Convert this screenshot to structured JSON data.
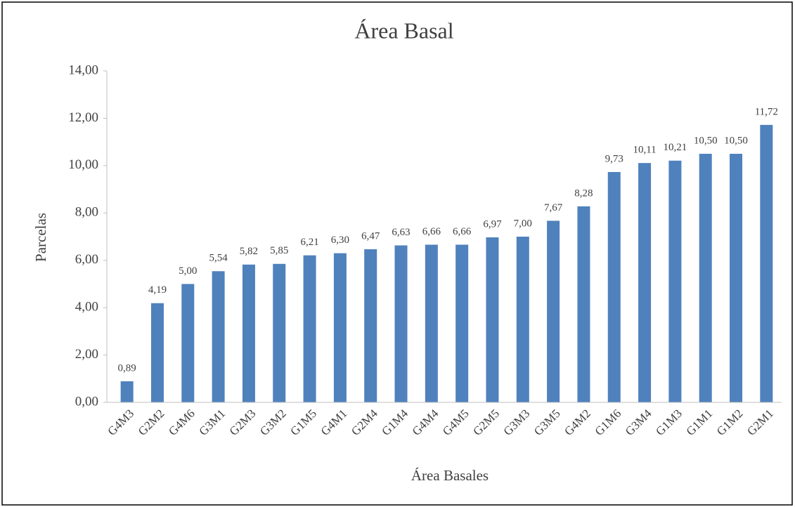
{
  "chart_data": {
    "type": "bar",
    "title": "Área Basal",
    "x_label": "Área Basales",
    "y_label": "Parcelas",
    "categories": [
      "G4M3",
      "G2M2",
      "G4M6",
      "G3M1",
      "G2M3",
      "G3M2",
      "G1M5",
      "G4M1",
      "G2M4",
      "G1M4",
      "G4M4",
      "G4M5",
      "G2M5",
      "G3M3",
      "G3M5",
      "G4M2",
      "G1M6",
      "G3M4",
      "G1M3",
      "G1M1",
      "G1M2",
      "G2M1"
    ],
    "values": [
      0.89,
      4.19,
      5.0,
      5.54,
      5.82,
      5.85,
      6.21,
      6.3,
      6.47,
      6.63,
      6.66,
      6.66,
      6.97,
      7.0,
      7.67,
      8.28,
      9.73,
      10.11,
      10.21,
      10.5,
      10.5,
      11.72
    ],
    "value_labels": [
      "0,89",
      "4,19",
      "5,00",
      "5,54",
      "5,82",
      "5,85",
      "6,21",
      "6,30",
      "6,47",
      "6,63",
      "6,66",
      "6,66",
      "6,97",
      "7,00",
      "7,67",
      "8,28",
      "9,73",
      "10,11",
      "10,21",
      "10,50",
      "10,50",
      "11,72"
    ],
    "color": "#4f81bd",
    "ylim": [
      0,
      14
    ],
    "yticks": [
      {
        "value": 0,
        "label": "0,00"
      },
      {
        "value": 2,
        "label": "2,00"
      },
      {
        "value": 4,
        "label": "4,00"
      },
      {
        "value": 6,
        "label": "6,00"
      },
      {
        "value": 8,
        "label": "8,00"
      },
      {
        "value": 10,
        "label": "10,00"
      },
      {
        "value": 12,
        "label": "12,00"
      },
      {
        "value": 14,
        "label": "14,00"
      }
    ],
    "grid": false
  }
}
